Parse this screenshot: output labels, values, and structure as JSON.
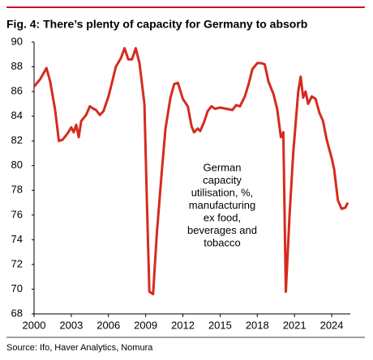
{
  "chart_data": {
    "type": "line",
    "title": "Fig. 4: There’s plenty of capacity for Germany to absorb",
    "annotation": [
      "German",
      "capacity",
      "utilisation, %,",
      "manufacturing",
      "ex food,",
      "beverages and",
      "tobacco"
    ],
    "source": "Source: Ifo, Haver Analytics, Nomura",
    "x": [
      2000.0,
      2000.5,
      2001.0,
      2001.3,
      2001.7,
      2002.0,
      2002.3,
      2002.7,
      2003.0,
      2003.2,
      2003.4,
      2003.6,
      2003.8,
      2004.2,
      2004.5,
      2004.8,
      2005.0,
      2005.3,
      2005.6,
      2006.0,
      2006.3,
      2006.6,
      2007.0,
      2007.3,
      2007.6,
      2007.9,
      2008.2,
      2008.5,
      2008.9,
      2009.1,
      2009.3,
      2009.6,
      2009.9,
      2010.3,
      2010.6,
      2011.0,
      2011.3,
      2011.6,
      2012.0,
      2012.4,
      2012.7,
      2012.9,
      2013.2,
      2013.4,
      2013.7,
      2014.0,
      2014.3,
      2014.6,
      2015.0,
      2015.5,
      2016.0,
      2016.3,
      2016.6,
      2017.0,
      2017.3,
      2017.6,
      2018.0,
      2018.3,
      2018.6,
      2018.9,
      2019.3,
      2019.6,
      2019.9,
      2020.1,
      2020.3,
      2020.6,
      2020.9,
      2021.3,
      2021.5,
      2021.7,
      2021.9,
      2022.1,
      2022.4,
      2022.7,
      2023.0,
      2023.3,
      2023.6,
      2024.0,
      2024.2,
      2024.5,
      2024.8,
      2025.1,
      2025.3
    ],
    "series": [
      {
        "name": "German capacity utilisation",
        "color": "#d52b1e",
        "values": [
          86.4,
          87.0,
          87.9,
          86.8,
          84.5,
          82.0,
          82.1,
          82.6,
          83.1,
          82.7,
          83.3,
          82.3,
          83.6,
          84.1,
          84.8,
          84.6,
          84.5,
          84.1,
          84.4,
          85.6,
          86.8,
          88.0,
          88.7,
          89.5,
          88.6,
          88.6,
          89.5,
          88.3,
          85.0,
          77.0,
          69.8,
          69.6,
          74.5,
          79.5,
          83.0,
          85.5,
          86.6,
          86.7,
          85.4,
          84.8,
          83.2,
          82.7,
          83.0,
          82.8,
          83.5,
          84.4,
          84.8,
          84.6,
          84.7,
          84.6,
          84.5,
          84.9,
          84.8,
          85.6,
          86.6,
          87.8,
          88.3,
          88.3,
          88.2,
          86.8,
          85.8,
          84.6,
          82.3,
          82.7,
          69.8,
          76.0,
          81.0,
          86.0,
          87.2,
          85.5,
          86.0,
          85.0,
          85.6,
          85.4,
          84.3,
          83.6,
          82.1,
          80.6,
          79.7,
          77.2,
          76.5,
          76.6,
          77.0
        ]
      }
    ],
    "xlim": [
      2000,
      2025.5
    ],
    "xticks": [
      2000,
      2003,
      2006,
      2009,
      2012,
      2015,
      2018,
      2021,
      2024
    ],
    "ylim": [
      68,
      90
    ],
    "yticks": [
      68,
      70,
      72,
      74,
      76,
      78,
      80,
      82,
      84,
      86,
      88,
      90
    ]
  }
}
